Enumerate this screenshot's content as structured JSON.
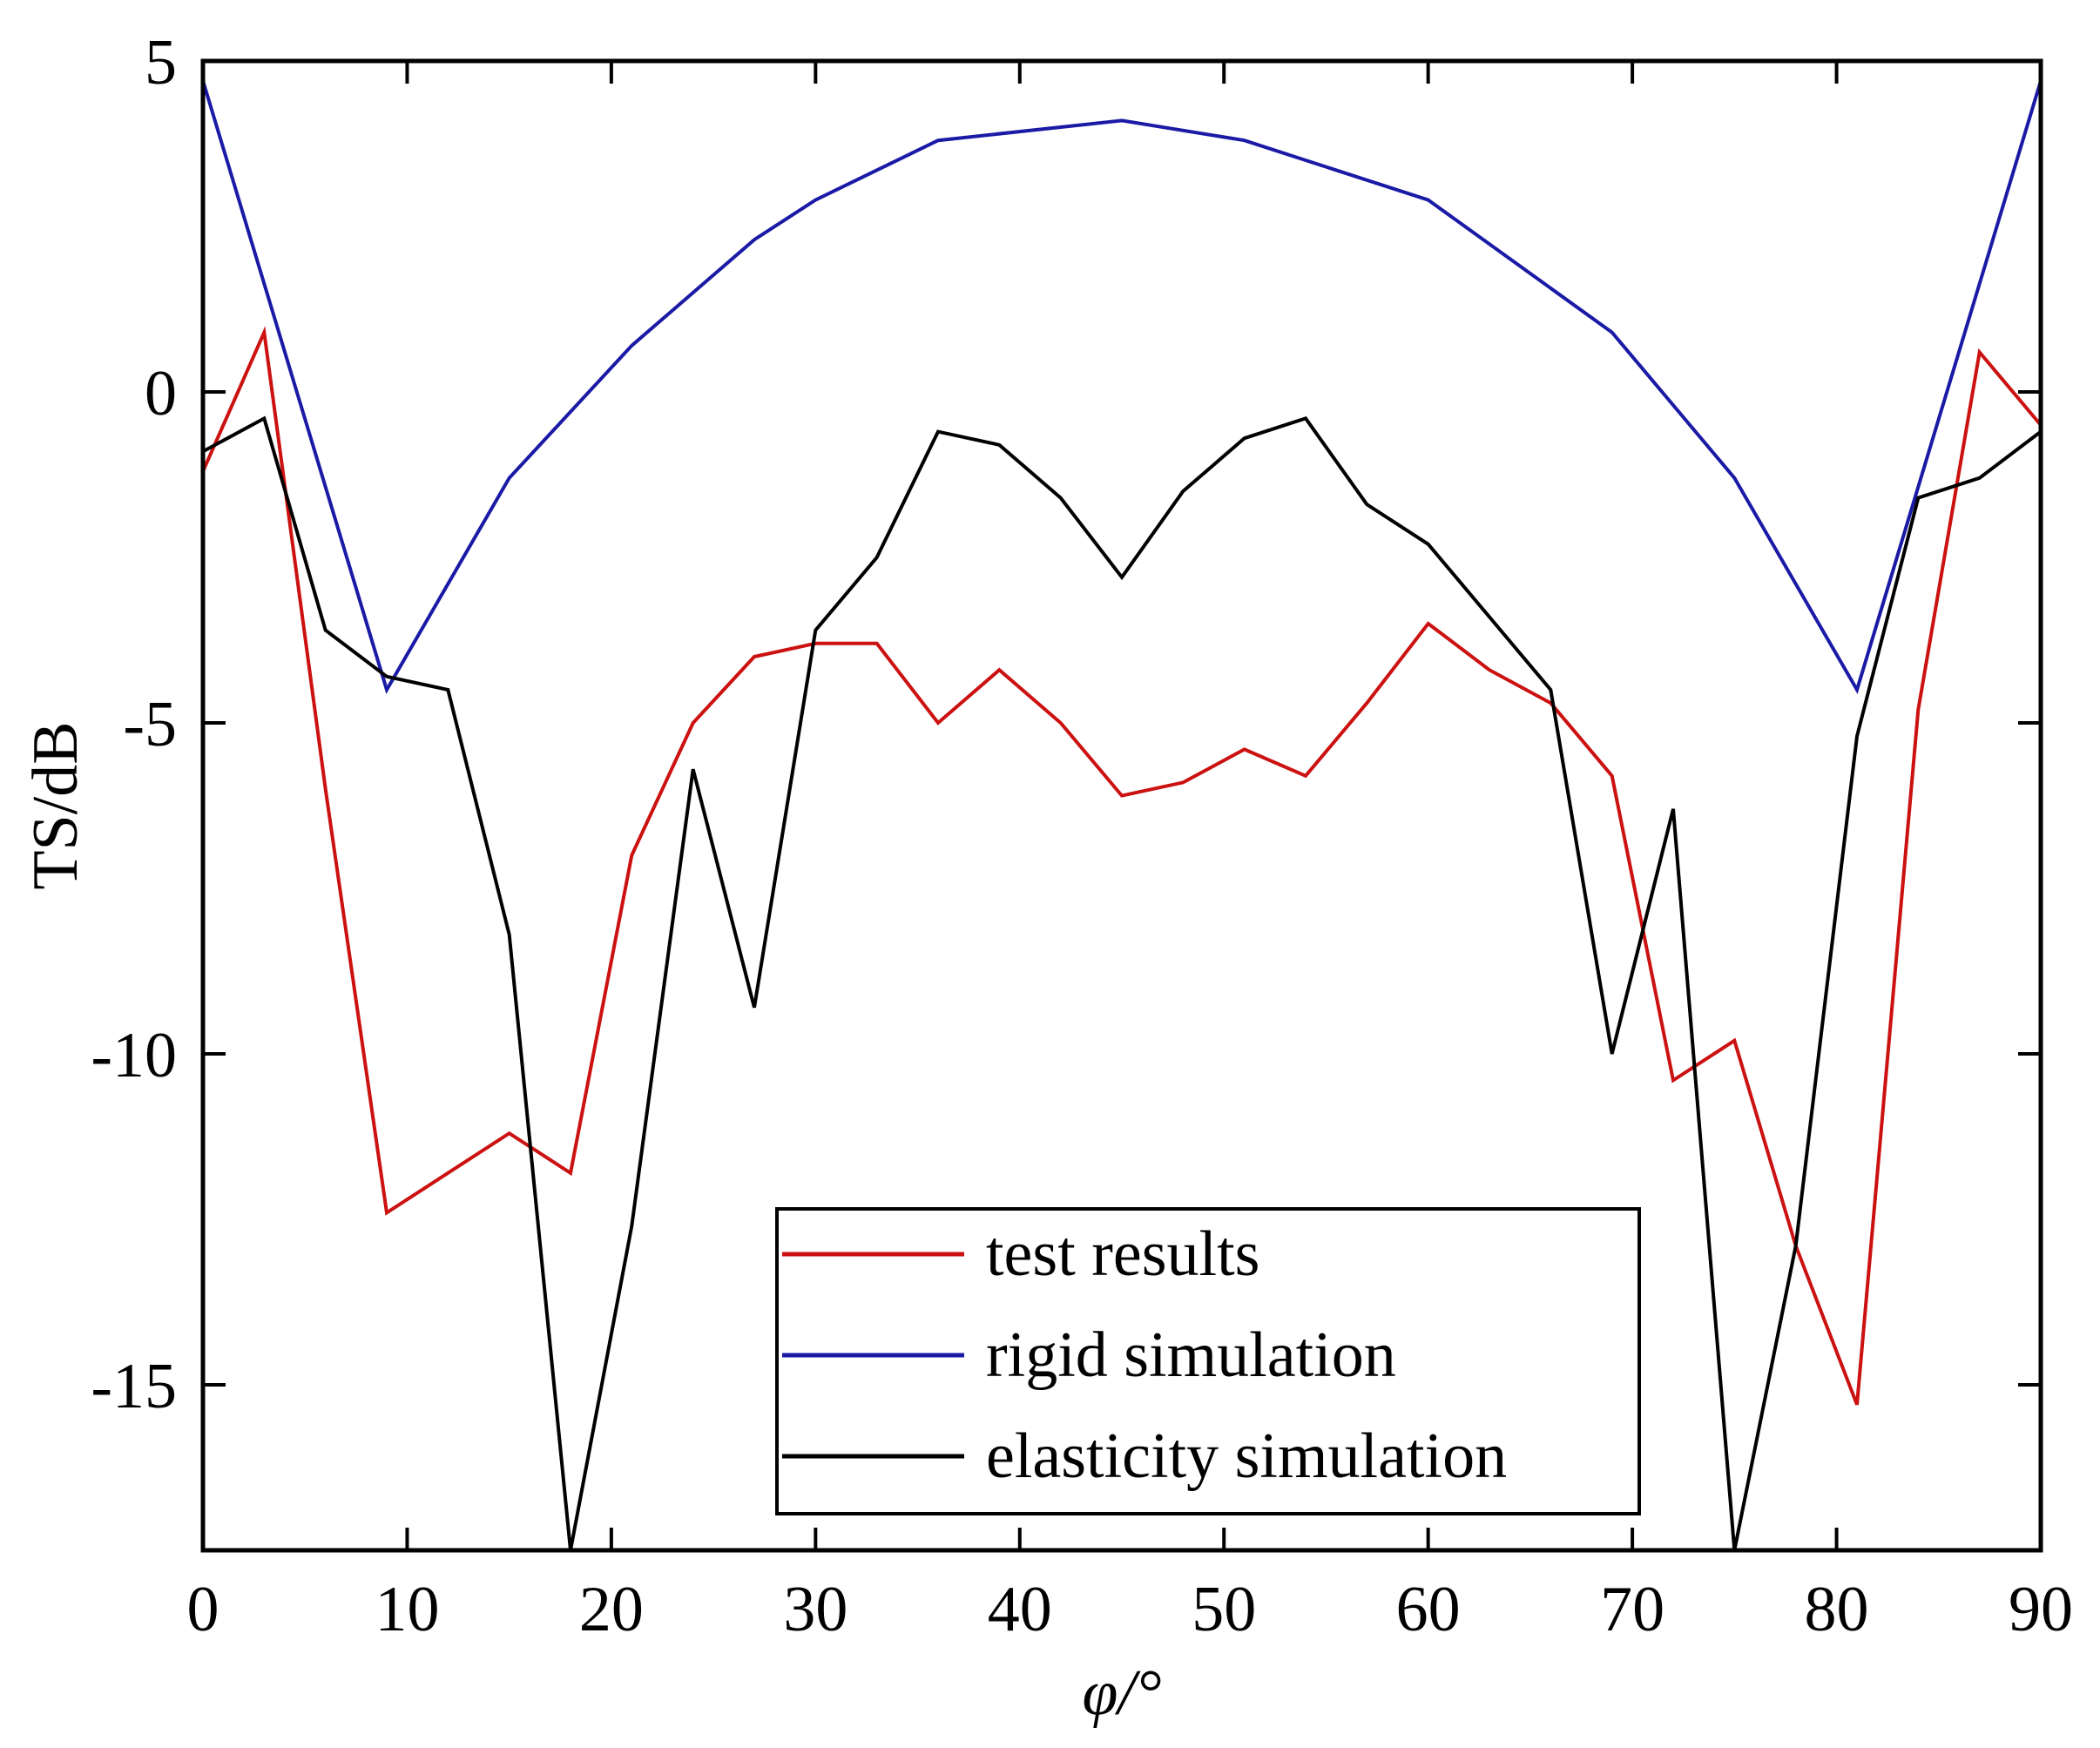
{
  "chart_data": {
    "type": "line",
    "xlabel": "φ/°",
    "ylabel": "TS/dB",
    "xlim": [
      0,
      90
    ],
    "ylim": [
      -17.5,
      5
    ],
    "xticks": [
      0,
      10,
      20,
      30,
      40,
      50,
      60,
      70,
      80,
      90
    ],
    "yticks": [
      5,
      0,
      -5,
      -10,
      -15
    ],
    "grid": false,
    "legend_position": "bottom-center",
    "series": [
      {
        "name": "test results",
        "color": "#cc1111",
        "x": [
          0,
          3,
          6,
          9,
          12,
          15,
          18,
          21,
          24,
          27,
          30,
          33,
          36,
          39,
          42,
          45,
          48,
          51,
          54,
          57,
          60,
          63,
          66,
          69,
          72,
          75,
          78,
          81,
          84,
          87,
          90
        ],
        "values": [
          -1.2,
          0.9,
          -6.0,
          -12.4,
          -11.8,
          -11.2,
          -11.8,
          -7.0,
          -5.0,
          -4.0,
          -3.8,
          -3.8,
          -5.0,
          -4.2,
          -5.0,
          -6.1,
          -5.9,
          -5.4,
          -5.8,
          -4.7,
          -3.5,
          -4.2,
          -4.7,
          -5.8,
          -10.4,
          -9.8,
          -12.9,
          -15.3,
          -4.8,
          0.6,
          -0.5
        ]
      },
      {
        "name": "rigid simulation",
        "color": "#1a1aa6",
        "x": [
          0,
          9,
          15,
          21,
          27,
          30,
          36,
          45,
          51,
          60,
          69,
          75,
          81,
          90
        ],
        "values": [
          4.7,
          -4.5,
          -1.3,
          0.7,
          2.3,
          2.9,
          3.8,
          4.1,
          3.8,
          2.9,
          0.9,
          -1.3,
          -4.5,
          4.7
        ]
      },
      {
        "name": "elasticity simulation",
        "color": "#000000",
        "x": [
          0,
          3,
          6,
          9,
          12,
          15,
          18,
          21,
          24,
          27,
          30,
          33,
          36,
          39,
          42,
          45,
          48,
          51,
          54,
          57,
          60,
          63,
          66,
          69,
          72,
          75,
          78,
          81,
          84,
          87,
          90
        ],
        "values": [
          -0.9,
          -0.4,
          -3.6,
          -4.3,
          -4.5,
          -8.2,
          -17.5,
          -12.6,
          -5.7,
          -9.3,
          -3.6,
          -2.5,
          -0.6,
          -0.8,
          -1.6,
          -2.8,
          -1.5,
          -0.7,
          -0.4,
          -1.7,
          -2.3,
          -3.4,
          -4.5,
          -10.0,
          -6.3,
          -17.5,
          -12.9,
          -5.2,
          -1.6,
          -1.3,
          -0.6
        ]
      }
    ]
  }
}
